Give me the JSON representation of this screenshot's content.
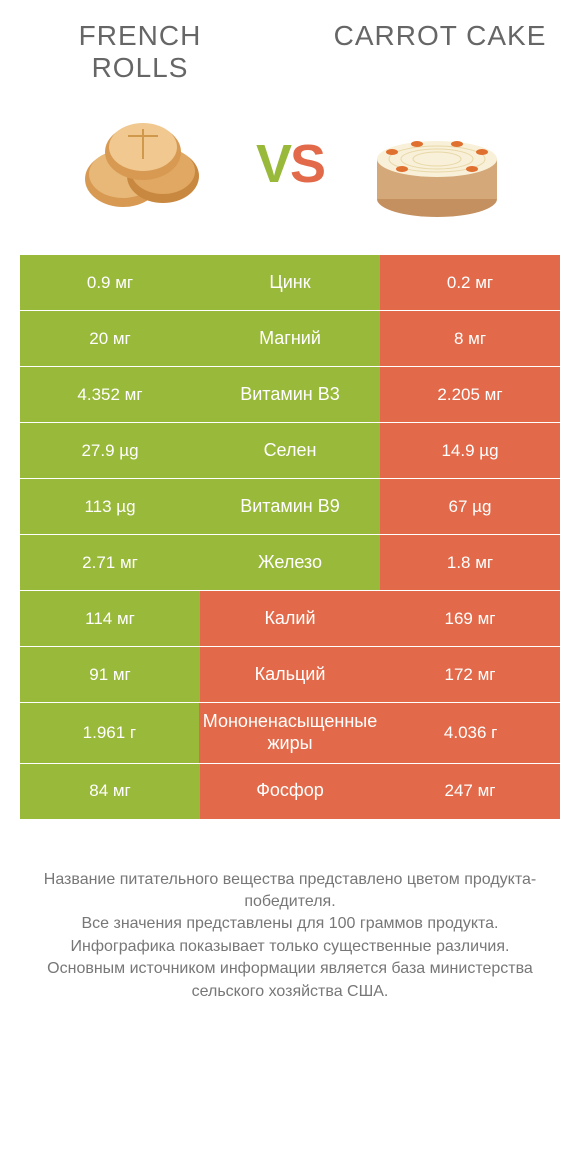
{
  "colors": {
    "left": "#99b93b",
    "right": "#e26a4a",
    "background": "#ffffff",
    "text": "#555555",
    "footnote": "#777777"
  },
  "typography": {
    "title_fontsize": 28,
    "vs_fontsize": 54,
    "cell_fontsize": 17,
    "mid_fontsize": 18,
    "footnote_fontsize": 16
  },
  "header": {
    "left_title": "FRENCH ROLLS",
    "right_title": "CARROT CAKE",
    "vs_v": "V",
    "vs_s": "S"
  },
  "rows": [
    {
      "nutrient": "Цинк",
      "left": "0.9 мг",
      "right": "0.2 мг",
      "winner": "left"
    },
    {
      "nutrient": "Магний",
      "left": "20 мг",
      "right": "8 мг",
      "winner": "left"
    },
    {
      "nutrient": "Витамин B3",
      "left": "4.352 мг",
      "right": "2.205 мг",
      "winner": "left"
    },
    {
      "nutrient": "Селен",
      "left": "27.9 µg",
      "right": "14.9 µg",
      "winner": "left"
    },
    {
      "nutrient": "Витамин B9",
      "left": "113 µg",
      "right": "67 µg",
      "winner": "left"
    },
    {
      "nutrient": "Железо",
      "left": "2.71 мг",
      "right": "1.8 мг",
      "winner": "left"
    },
    {
      "nutrient": "Калий",
      "left": "114 мг",
      "right": "169 мг",
      "winner": "right"
    },
    {
      "nutrient": "Кальций",
      "left": "91 мг",
      "right": "172 мг",
      "winner": "right"
    },
    {
      "nutrient": "Мононенасыщенные жиры",
      "left": "1.961 г",
      "right": "4.036 г",
      "winner": "right"
    },
    {
      "nutrient": "Фосфор",
      "left": "84 мг",
      "right": "247 мг",
      "winner": "right"
    }
  ],
  "footnote": {
    "line1": "Название питательного вещества представлено цветом продукта-победителя.",
    "line2": "Все значения представлены для 100 граммов продукта.",
    "line3": "Инфографика показывает только существенные различия.",
    "line4": "Основным источником информации является база министерства сельского хозяйства США."
  }
}
